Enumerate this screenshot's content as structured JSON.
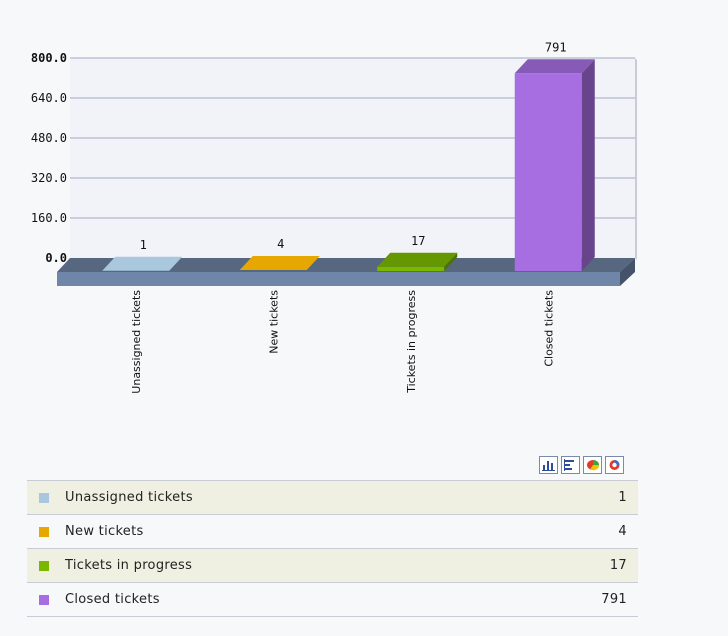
{
  "chart_data": {
    "type": "bar",
    "categories": [
      "Unassigned tickets",
      "New tickets",
      "Tickets in progress",
      "Closed tickets"
    ],
    "values": [
      1,
      4,
      17,
      791
    ],
    "colors": [
      "#a9c8de",
      "#e6a800",
      "#7ab800",
      "#a66ee0"
    ],
    "y_ticks": [
      "0.0",
      "160.0",
      "320.0",
      "480.0",
      "640.0",
      "800.0"
    ],
    "ylim": [
      0,
      800
    ],
    "grid": true,
    "three_d": true
  },
  "legend": {
    "rows": [
      {
        "label": "Unassigned tickets",
        "value": "1",
        "color": "#a9c8de"
      },
      {
        "label": "New tickets",
        "value": "4",
        "color": "#e6a800"
      },
      {
        "label": "Tickets in progress",
        "value": "17",
        "color": "#7ab800"
      },
      {
        "label": "Closed tickets",
        "value": "791",
        "color": "#a66ee0"
      }
    ]
  },
  "chart_type_buttons": [
    {
      "icon": "bar-chart-icon"
    },
    {
      "icon": "horizontal-bar-chart-icon"
    },
    {
      "icon": "pie-chart-icon"
    },
    {
      "icon": "donut-chart-icon"
    }
  ]
}
